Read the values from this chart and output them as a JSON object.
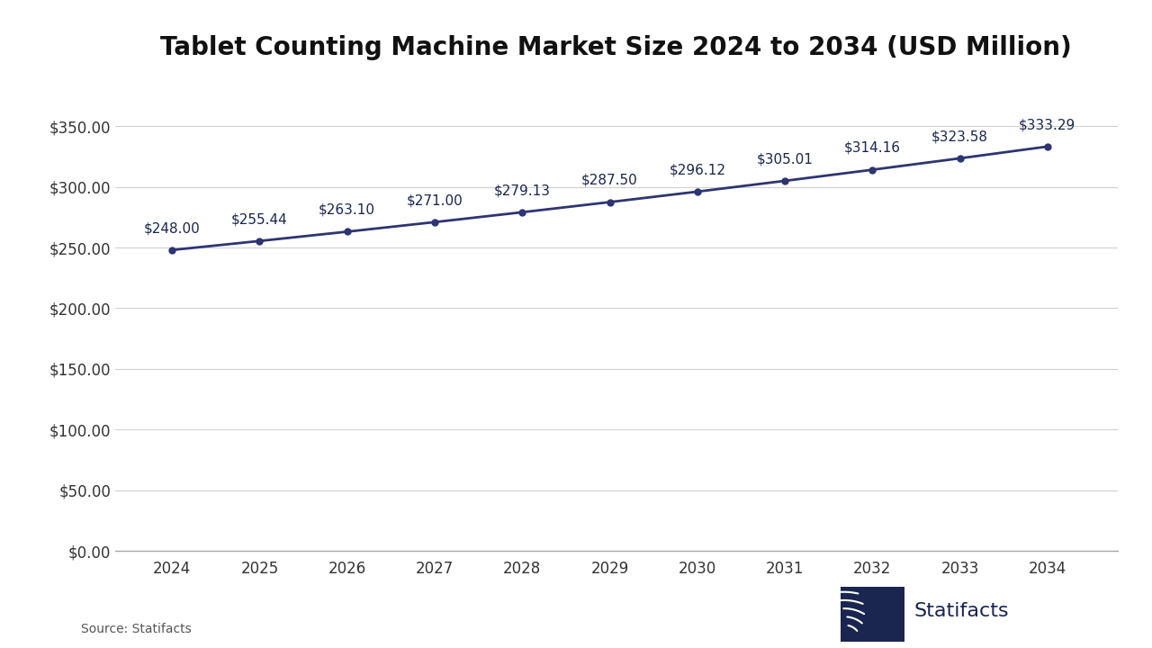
{
  "title": "Tablet Counting Machine Market Size 2024 to 2034 (USD Million)",
  "years": [
    2024,
    2025,
    2026,
    2027,
    2028,
    2029,
    2030,
    2031,
    2032,
    2033,
    2034
  ],
  "values": [
    248.0,
    255.44,
    263.1,
    271.0,
    279.13,
    287.5,
    296.12,
    305.01,
    314.16,
    323.58,
    333.29
  ],
  "labels": [
    "$248.00",
    "$255.44",
    "$263.10",
    "$271.00",
    "$279.13",
    "$287.50",
    "$296.12",
    "$305.01",
    "$314.16",
    "$323.58",
    "$333.29"
  ],
  "line_color": "#2E3472",
  "marker_color": "#2E3472",
  "background_color": "#FFFFFF",
  "grid_color": "#D0D0D0",
  "text_color": "#333333",
  "title_fontsize": 20,
  "label_fontsize": 11,
  "tick_fontsize": 12,
  "yticks": [
    0,
    50,
    100,
    150,
    200,
    250,
    300,
    350
  ],
  "ytick_labels": [
    "$0.00",
    "$50.00",
    "$100.00",
    "$150.00",
    "$200.00",
    "$250.00",
    "$300.00",
    "$350.00"
  ],
  "ylim": [
    0,
    390
  ],
  "xlim_left": 2023.35,
  "xlim_right": 2034.8,
  "source_text": "Source: Statifacts",
  "brand_text": "Statifacts",
  "navy_color": "#1a2550"
}
